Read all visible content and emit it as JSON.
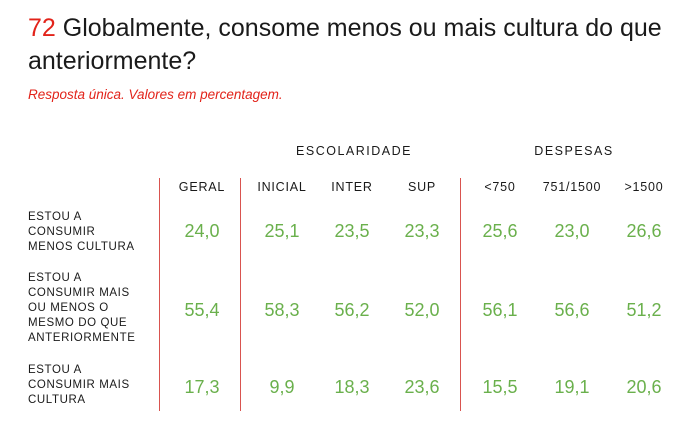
{
  "question_number": "72",
  "question_text": "Globalmente, consome menos ou mais cultura do que anteriormente?",
  "subtitle": "Resposta única. Valores em percentagem.",
  "groups": {
    "escolaridade": "ESCOLARIDADE",
    "despesas": "DESPESAS"
  },
  "columns": [
    "GERAL",
    "INICIAL",
    "INTER",
    "SUP",
    "<750",
    "751/1500",
    ">1500"
  ],
  "rows": [
    {
      "label": "ESTOU A\nCONSUMIR\nMENOS CULTURA",
      "values": [
        "24,0",
        "25,1",
        "23,5",
        "23,3",
        "25,6",
        "23,0",
        "26,6"
      ]
    },
    {
      "label": "ESTOU A\nCONSUMIR MAIS\nOU MENOS O\nMESMO DO QUE\nANTERIORMENTE",
      "values": [
        "55,4",
        "58,3",
        "56,2",
        "52,0",
        "56,1",
        "56,6",
        "51,2"
      ]
    },
    {
      "label": "ESTOU A\nCONSUMIR MAIS\nCULTURA",
      "values": [
        "17,3",
        "9,9",
        "18,3",
        "23,6",
        "15,5",
        "19,1",
        "20,6"
      ]
    }
  ],
  "colors": {
    "accent_red": "#e2231a",
    "value_green": "#6ab04c",
    "divider": "#d9534f"
  }
}
